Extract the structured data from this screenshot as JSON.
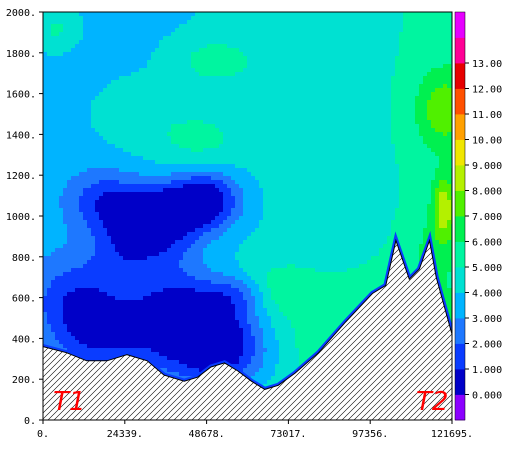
{
  "chart_data": {
    "type": "heatmap",
    "subtype": "filled-contour cross-section with terrain",
    "title": "",
    "xlabel": "",
    "ylabel": "",
    "xlim": [
      0,
      121695
    ],
    "ylim": [
      0,
      2000
    ],
    "x_ticks": [
      "0.",
      "24339.",
      "48678.",
      "73017.",
      "97356.",
      "121695."
    ],
    "y_ticks": [
      "0.",
      "200.",
      "400.",
      "600.",
      "800.",
      "1000.",
      "1200.",
      "1400.",
      "1600.",
      "1800.",
      "2000."
    ],
    "colorbar": {
      "levels": [
        -1,
        0,
        1,
        2,
        3,
        4,
        5,
        6,
        7,
        8,
        9,
        10,
        11,
        12,
        13,
        14
      ],
      "labels": [
        "0.000",
        "1.000",
        "2.000",
        "3.000",
        "4.000",
        "5.000",
        "6.000",
        "7.000",
        "8.000",
        "9.000",
        "10.00",
        "11.00",
        "12.00",
        "13.00"
      ],
      "colors": [
        "#8b00ff",
        "#0000c8",
        "#0a3cff",
        "#1e78ff",
        "#00b4ff",
        "#00e1d2",
        "#00f5a0",
        "#00f050",
        "#50f000",
        "#b4f000",
        "#f0e600",
        "#ffa000",
        "#ff5000",
        "#e60000",
        "#ff0096",
        "#e600ff"
      ]
    },
    "field_min": 0,
    "field_max": 10.2,
    "terrain_profile": {
      "x": [
        0,
        7000,
        13000,
        19000,
        25000,
        31000,
        36000,
        42000,
        46000,
        50000,
        54000,
        58000,
        62000,
        66000,
        70000,
        75000,
        82000,
        90000,
        98000,
        102000,
        105000,
        109000,
        112000,
        115000,
        117000,
        121695
      ],
      "y": [
        360,
        330,
        290,
        290,
        320,
        290,
        220,
        190,
        210,
        260,
        280,
        240,
        190,
        150,
        170,
        230,
        330,
        480,
        620,
        660,
        880,
        690,
        740,
        880,
        700,
        420
      ]
    },
    "terrain_fill": "hatched",
    "annotations": [
      {
        "text": "T1",
        "x": 3000,
        "y": 50
      },
      {
        "text": "T2",
        "x": 111000,
        "y": 50
      }
    ]
  }
}
